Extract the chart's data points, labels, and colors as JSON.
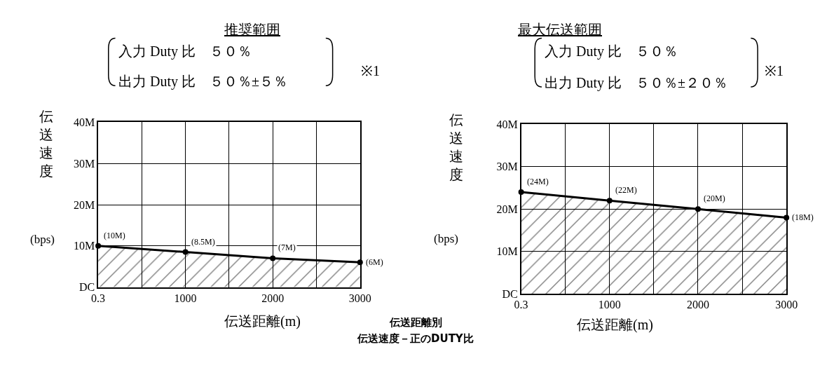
{
  "chart_data": [
    {
      "type": "area",
      "title": "推奨範囲",
      "subtitle": "入力 Duty 比　５０％",
      "xlabel": "伝送距離(m)",
      "ylabel": "伝送速度",
      "annotations": [
        "出力 Duty 比　５０％±５％",
        "※1",
        "(bps)",
        "伝送距離別",
        "伝送速度－正のDUTY比"
      ],
      "x": [
        0.3,
        1000,
        2000,
        3000
      ],
      "series": [
        {
          "color": "#000000",
          "values": [
            10,
            8.5,
            7,
            6
          ],
          "value_labels": [
            "(10M)",
            "(8.5M)",
            "(7M)",
            "(6M)"
          ]
        }
      ],
      "xlim": [
        0.3,
        3000
      ],
      "xticks": [
        0.3,
        {
          "value": 500,
          "label": null
        },
        1000,
        {
          "value": 1500,
          "label": null
        },
        2000,
        {
          "value": 2500,
          "label": null
        },
        3000
      ],
      "ylim": [
        0,
        40
      ],
      "yticks": [
        {
          "value": 0,
          "label": "DC"
        },
        {
          "value": 10,
          "label": "10M"
        },
        {
          "value": 20,
          "label": "20M"
        },
        {
          "value": 30,
          "label": "30M"
        },
        {
          "value": 40,
          "label": "40M"
        }
      ],
      "grid": true,
      "marker": "circle"
    },
    {
      "type": "area",
      "title": "最大伝送範囲",
      "subtitle": "入力 Duty 比　５０％",
      "xlabel": "伝送距離(m)",
      "ylabel": "伝送速度",
      "annotations": [
        "出力 Duty 比　５０％±２０％",
        "※1",
        "(bps)"
      ],
      "x": [
        0.3,
        1000,
        2000,
        3000
      ],
      "series": [
        {
          "color": "#000000",
          "values": [
            24,
            22,
            20,
            18
          ],
          "value_labels": [
            "(24M)",
            "(22M)",
            "(20M)",
            "(18M)"
          ]
        }
      ],
      "xlim": [
        0.3,
        3000
      ],
      "xticks": [
        0.3,
        {
          "value": 500,
          "label": null
        },
        1000,
        {
          "value": 1500,
          "label": null
        },
        2000,
        {
          "value": 2500,
          "label": null
        },
        3000
      ],
      "ylim": [
        0,
        40
      ],
      "yticks": [
        {
          "value": 0,
          "label": "DC"
        },
        {
          "value": 10,
          "label": "10M"
        },
        {
          "value": 20,
          "label": "20M"
        },
        {
          "value": 30,
          "label": "30M"
        },
        {
          "value": 40,
          "label": "40M"
        }
      ],
      "grid": true,
      "marker": "circle"
    }
  ]
}
